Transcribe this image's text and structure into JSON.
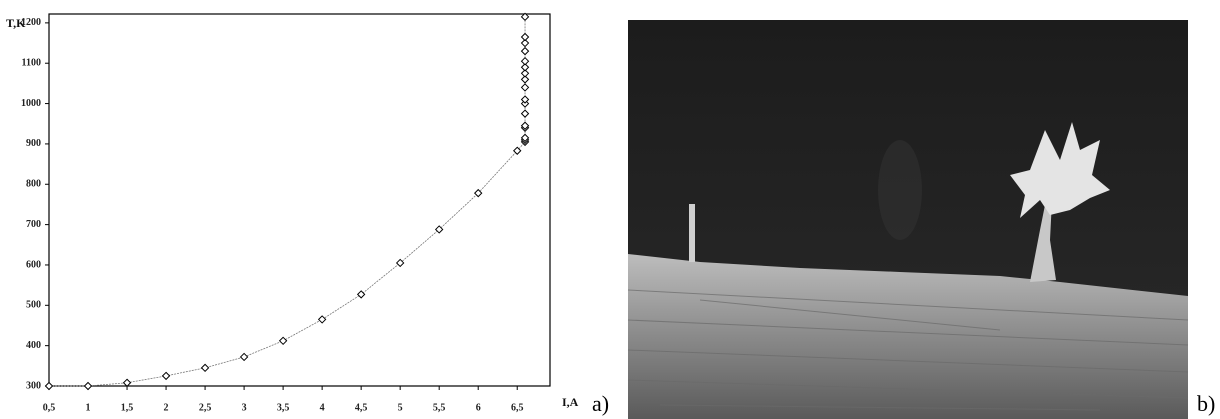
{
  "chart_data": {
    "type": "line",
    "x_label": "I,A",
    "y_label": "T,K",
    "panel_labels": [
      "a)",
      "b)"
    ],
    "x": [
      0.5,
      1,
      1.5,
      2,
      2.5,
      3,
      3.5,
      4,
      4.5,
      5,
      5.5,
      6,
      6.5,
      6.6,
      6.6,
      6.6,
      6.6,
      6.6,
      6.6,
      6.6,
      6.6,
      6.6,
      6.6,
      6.6,
      6.6,
      6.6,
      6.6,
      6.6,
      6.6,
      6.6
    ],
    "series": [
      {
        "color": "#000000",
        "values": [
          300,
          300,
          308,
          325,
          345,
          372,
          412,
          465,
          527,
          605,
          688,
          778,
          883,
          905,
          910,
          915,
          940,
          945,
          975,
          1000,
          1010,
          1040,
          1060,
          1075,
          1090,
          1105,
          1130,
          1150,
          1165,
          1215
        ]
      }
    ],
    "xlim": [
      0.5,
      6.92
    ],
    "ylim": [
      300,
      1222
    ],
    "xticks": [
      {
        "value": 0.5,
        "label": "0,5"
      },
      1,
      {
        "value": 1.5,
        "label": "1,5"
      },
      2,
      {
        "value": 2.5,
        "label": "2,5"
      },
      3,
      {
        "value": 3.5,
        "label": "3,5"
      },
      4,
      {
        "value": 4.5,
        "label": "4,5"
      },
      5,
      {
        "value": 5.5,
        "label": "5,5"
      },
      6,
      {
        "value": 6.5,
        "label": "6,5"
      }
    ],
    "yticks": [
      300,
      400,
      500,
      600,
      700,
      800,
      900,
      1000,
      1100,
      1200
    ],
    "grid": false
  }
}
